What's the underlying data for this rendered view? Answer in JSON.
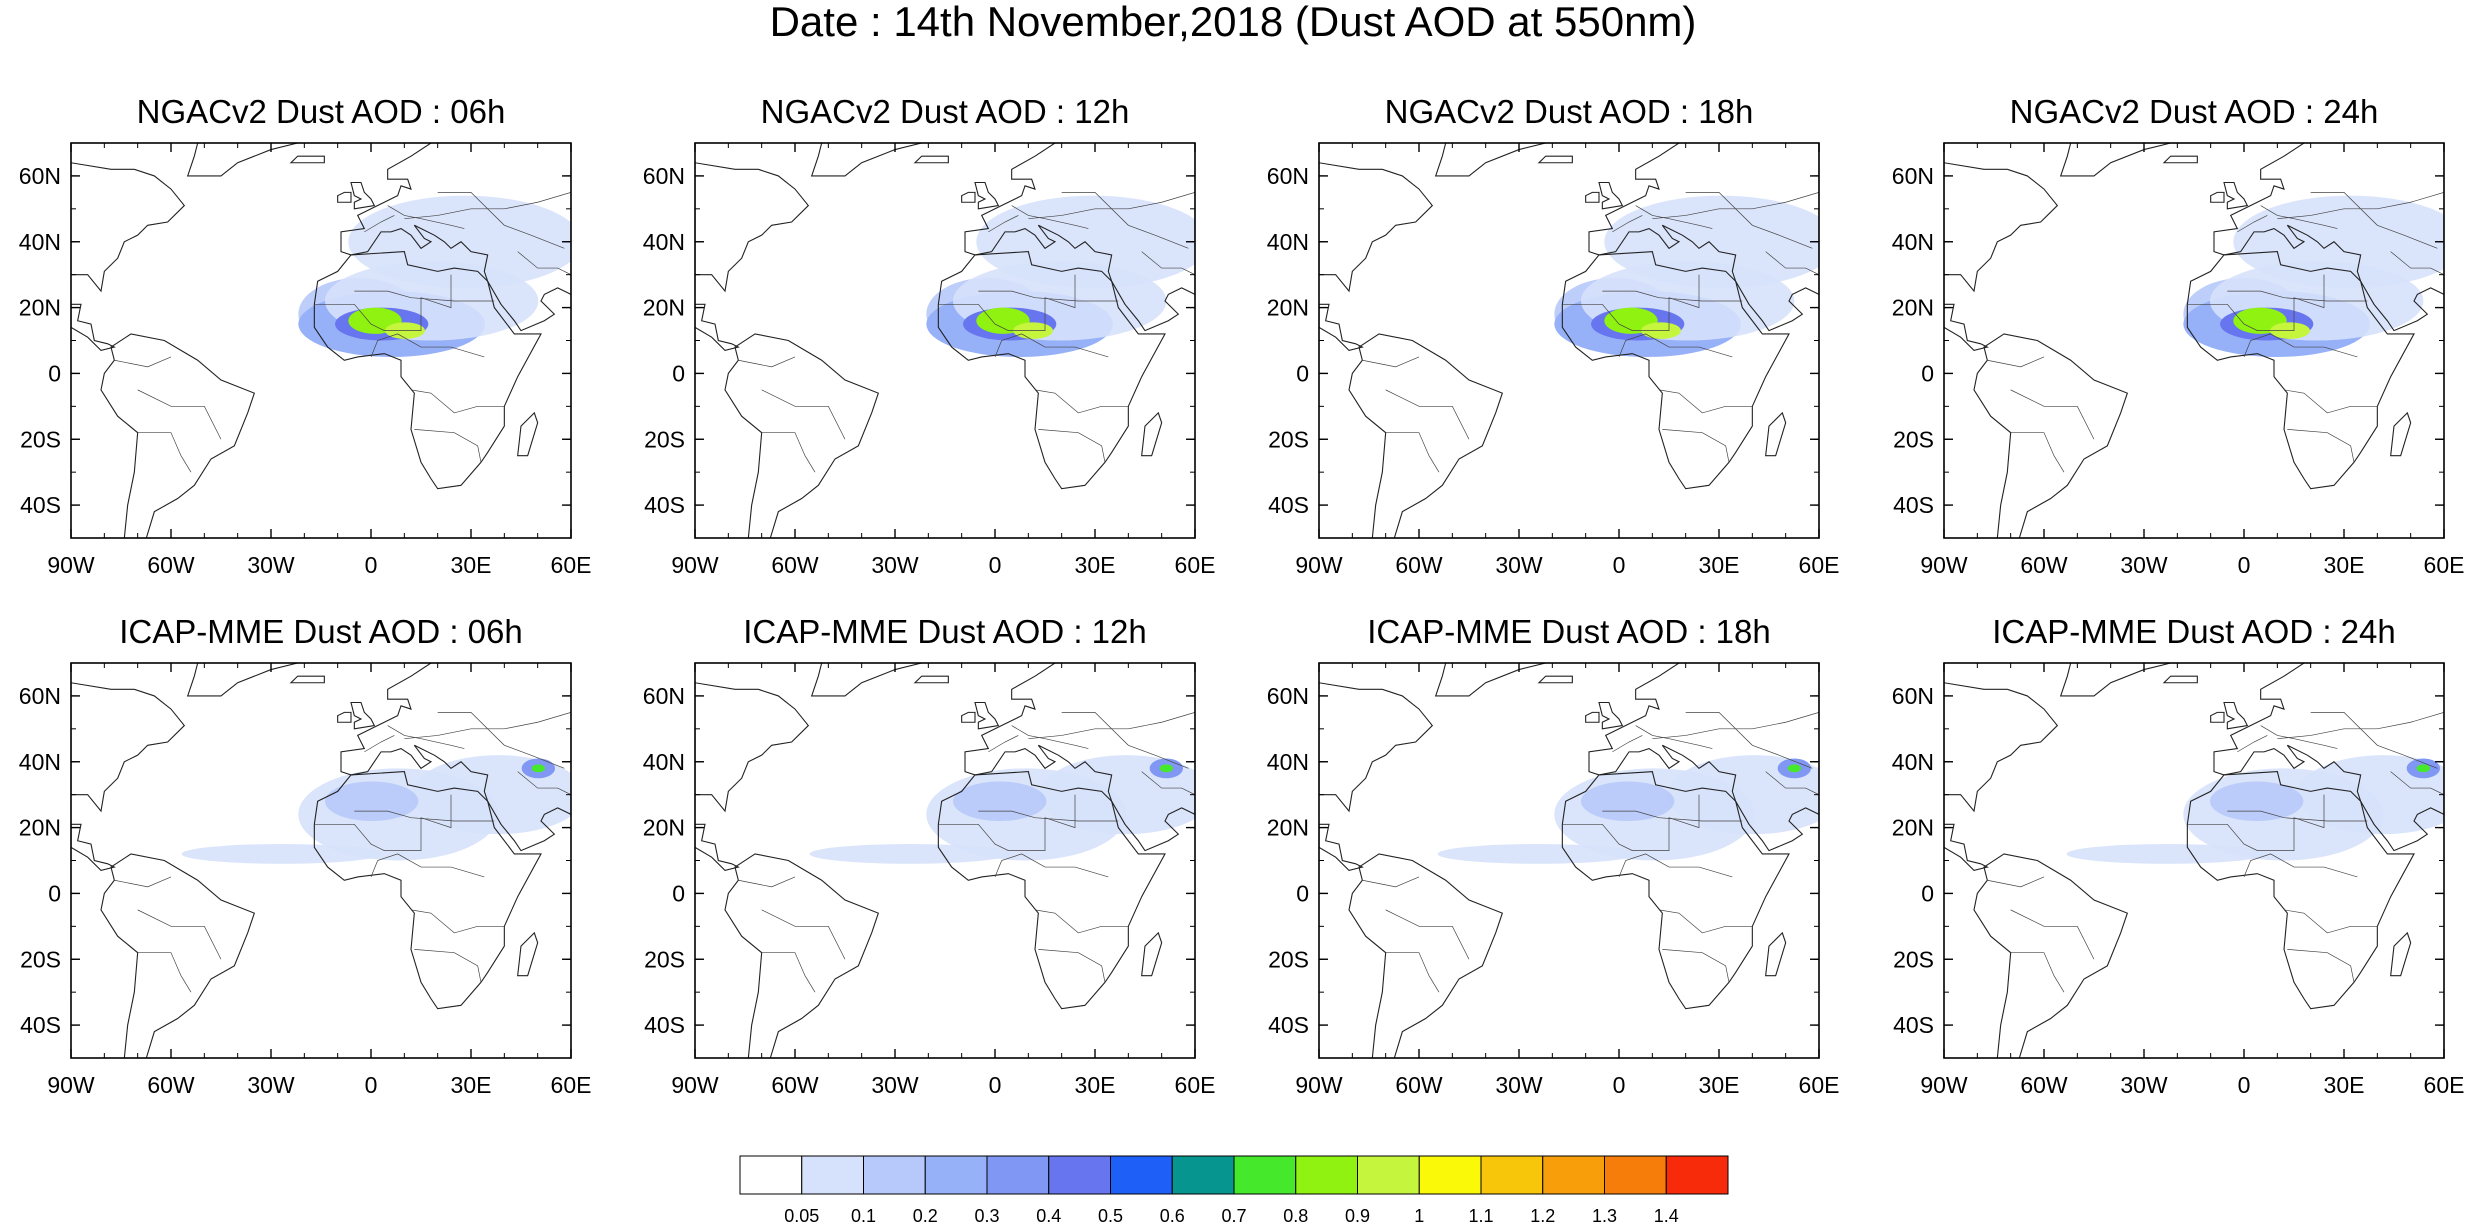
{
  "title": "Date : 14th November,2018 (Dust AOD at 550nm)",
  "axes": {
    "lon_ticks": [
      "90W",
      "60W",
      "30W",
      "0",
      "30E",
      "60E"
    ],
    "lon_values": [
      -90,
      -60,
      -30,
      0,
      30,
      60
    ],
    "lat_ticks": [
      "60N",
      "40N",
      "20N",
      "0",
      "20S",
      "40S"
    ],
    "lat_values": [
      60,
      40,
      20,
      0,
      -20,
      -40
    ],
    "lon_range": [
      -90,
      60
    ],
    "lat_range": [
      -50,
      70
    ]
  },
  "panels": [
    {
      "title": "NGACv2 Dust AOD : 06h",
      "model": "NGACv2",
      "hour": "06h"
    },
    {
      "title": "NGACv2 Dust AOD : 12h",
      "model": "NGACv2",
      "hour": "12h"
    },
    {
      "title": "NGACv2 Dust AOD : 18h",
      "model": "NGACv2",
      "hour": "18h"
    },
    {
      "title": "NGACv2 Dust AOD : 24h",
      "model": "NGACv2",
      "hour": "24h"
    },
    {
      "title": "ICAP-MME Dust AOD : 06h",
      "model": "ICAP-MME",
      "hour": "06h"
    },
    {
      "title": "ICAP-MME Dust AOD : 12h",
      "model": "ICAP-MME",
      "hour": "12h"
    },
    {
      "title": "ICAP-MME Dust AOD : 18h",
      "model": "ICAP-MME",
      "hour": "18h"
    },
    {
      "title": "ICAP-MME Dust AOD : 24h",
      "model": "ICAP-MME",
      "hour": "24h"
    }
  ],
  "colorbar": {
    "labels": [
      "0.05",
      "0.1",
      "0.2",
      "0.3",
      "0.4",
      "0.5",
      "0.6",
      "0.7",
      "0.8",
      "0.9",
      "1",
      "1.1",
      "1.2",
      "1.3",
      "1.4"
    ],
    "colors": [
      "#ffffff",
      "#d6e1fb",
      "#b7c9fa",
      "#97b1f8",
      "#8098f3",
      "#6776ee",
      "#1e5ff7",
      "#07968f",
      "#45e82b",
      "#8ff211",
      "#c5f53d",
      "#fafa08",
      "#f7c50a",
      "#f79e0a",
      "#f77d0a",
      "#f72a0a"
    ]
  },
  "plumes": {
    "ngac": [
      {
        "lon": -2,
        "lat": 18,
        "rx": 18,
        "ry": 11,
        "level": 2
      },
      {
        "lon": 8,
        "lat": 15,
        "rx": 28,
        "ry": 10,
        "level": 3
      },
      {
        "lon": 20,
        "lat": 22,
        "rx": 32,
        "ry": 12,
        "level": 1
      },
      {
        "lon": 30,
        "lat": 40,
        "rx": 35,
        "ry": 14,
        "level": 1
      },
      {
        "lon": 5,
        "lat": 15,
        "rx": 14,
        "ry": 5,
        "level": 5
      },
      {
        "lon": 3,
        "lat": 16,
        "rx": 8,
        "ry": 4,
        "level": 9
      },
      {
        "lon": 12,
        "lat": 13,
        "rx": 6,
        "ry": 2.5,
        "level": 10
      }
    ],
    "icap": [
      {
        "lon": 10,
        "lat": 24,
        "rx": 30,
        "ry": 14,
        "level": 1
      },
      {
        "lon": 40,
        "lat": 30,
        "rx": 26,
        "ry": 12,
        "level": 1
      },
      {
        "lon": -25,
        "lat": 12,
        "rx": 30,
        "ry": 3,
        "level": 1
      },
      {
        "lon": 2,
        "lat": 28,
        "rx": 14,
        "ry": 6,
        "level": 2
      },
      {
        "lon": 52,
        "lat": 38,
        "rx": 5,
        "ry": 3,
        "level": 4
      },
      {
        "lon": 52,
        "lat": 38,
        "rx": 2,
        "ry": 1.2,
        "level": 8
      }
    ]
  }
}
